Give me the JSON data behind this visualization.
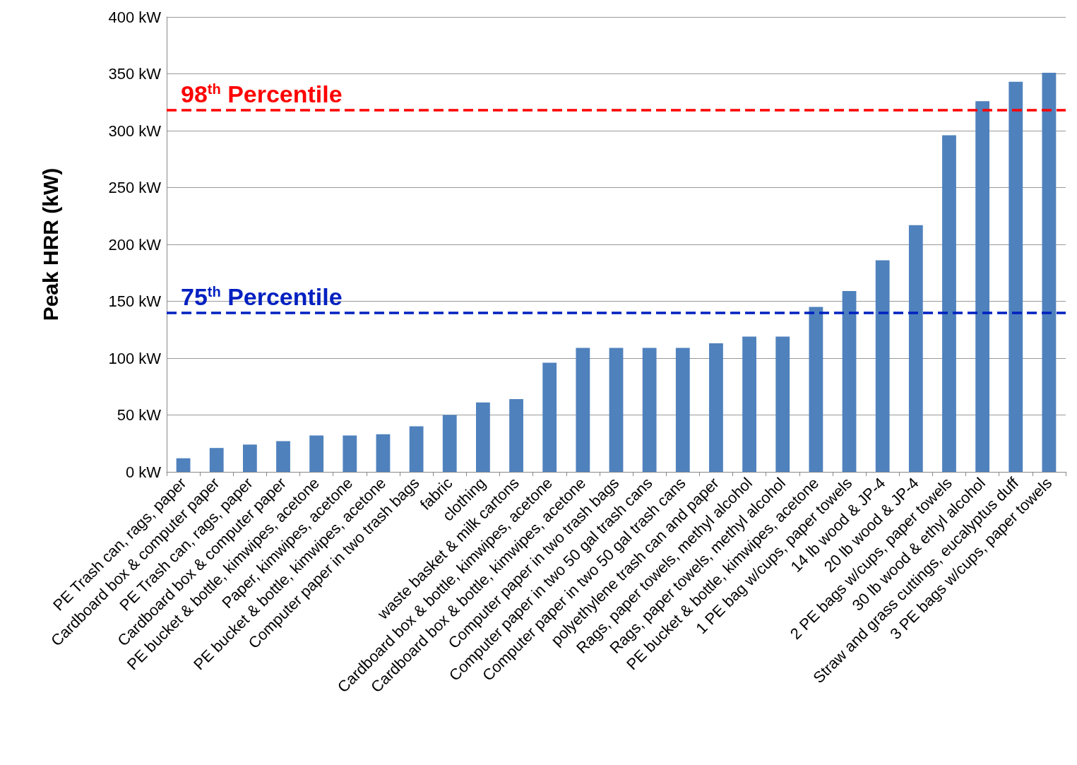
{
  "chart_data": {
    "type": "bar",
    "ylabel": "Peak HRR (kW)",
    "categories": [
      "PE Trash can, rags, paper",
      "Cardboard box & computer paper",
      "PE Trash can, rags, paper",
      "Cardboard box & computer paper",
      "PE bucket & bottle, kimwipes, acetone",
      "Paper, kimwipes, acetone",
      "PE bucket & bottle, kimwipes, acetone",
      "Computer paper in two trash bags",
      "fabric",
      "clothing",
      "waste basket & milk cartons",
      "Cardboard box & bottle, kimwipes, acetone",
      "Cardboard box & bottle, kimwipes, acetone",
      "Computer paper in two trash bags",
      "Computer paper in two 50 gal trash cans",
      "Computer paper in two 50 gal trash cans",
      "polyethylene trash can and paper",
      "Rags, paper towels, methyl alcohol",
      "Rags, paper towels, methyl alcohol",
      "PE bucket & bottle, kimwipes, acetone",
      "1 PE bag w/cups, paper towels",
      "14 lb wood & JP-4",
      "20 lb wood & JP-4",
      "2 PE bags w/cups, paper towels",
      "30 lb wood & ethyl alcohol",
      "Straw and grass cuttings, eucalyptus duff",
      "3 PE bags w/cups, paper towels"
    ],
    "values": [
      12,
      21,
      24,
      27,
      32,
      32,
      33,
      40,
      50,
      61,
      64,
      96,
      109,
      109,
      109,
      109,
      113,
      119,
      119,
      145,
      159,
      186,
      217,
      296,
      326,
      343,
      351
    ],
    "color": "#4f81bd",
    "ylim": [
      0,
      400
    ],
    "yticks": [
      {
        "value": 0,
        "label": "0 kW"
      },
      {
        "value": 50,
        "label": "50 kW"
      },
      {
        "value": 100,
        "label": "100 kW"
      },
      {
        "value": 150,
        "label": "150 kW"
      },
      {
        "value": 200,
        "label": "200 kW"
      },
      {
        "value": 250,
        "label": "250 kW"
      },
      {
        "value": 300,
        "label": "300 kW"
      },
      {
        "value": 350,
        "label": "350 kW"
      },
      {
        "value": 400,
        "label": "400 kW"
      }
    ],
    "grid": "y",
    "ref_lines": [
      {
        "axis": "y",
        "value": 318,
        "label": "98$^{th}$ Percentile",
        "color": "#ff0000",
        "line_style": "dashed"
      },
      {
        "axis": "y",
        "value": 140,
        "label": "75$^{th}$ Percentile",
        "color": "#0020c0",
        "line_style": "dashed"
      }
    ]
  }
}
